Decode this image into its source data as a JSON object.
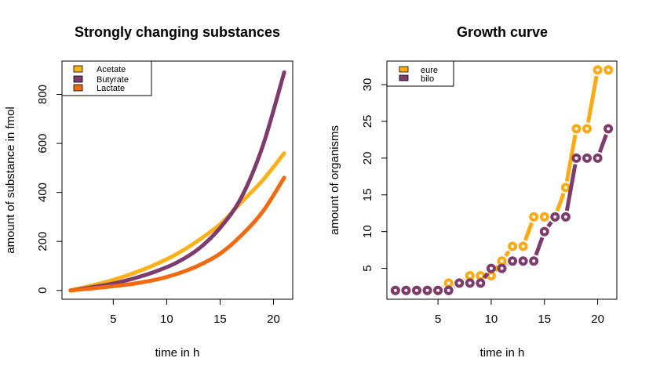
{
  "chart_data": [
    {
      "type": "line",
      "title": "Strongly changing substances",
      "xlabel": "time in h",
      "ylabel": "amount of substance in fmol",
      "xlim": [
        0.2,
        21.8
      ],
      "ylim": [
        -36,
        936
      ],
      "xticks": [
        5,
        10,
        15,
        20
      ],
      "yticks": [
        0,
        200,
        400,
        600,
        800
      ],
      "grid": false,
      "legend_position": "top-left",
      "x": [
        1,
        3,
        5,
        7,
        9,
        11,
        13,
        15,
        17,
        19,
        21
      ],
      "series": [
        {
          "name": "Acetate",
          "color": "#FBB117",
          "values": [
            0,
            20,
            43,
            72,
            107,
            150,
            205,
            270,
            360,
            450,
            560
          ]
        },
        {
          "name": "Butyrate",
          "color": "#7E3B6E",
          "values": [
            0,
            13,
            28,
            50,
            78,
            115,
            170,
            255,
            380,
            590,
            890
          ]
        },
        {
          "name": "Lactate",
          "color": "#F26A10",
          "values": [
            0,
            8,
            17,
            28,
            44,
            68,
            102,
            150,
            225,
            322,
            460
          ]
        }
      ]
    },
    {
      "type": "line",
      "title": "Growth curve",
      "xlabel": "time in h",
      "ylabel": "amount of organisms",
      "xlim": [
        0.2,
        21.8
      ],
      "ylim": [
        0.8,
        33.2
      ],
      "xticks": [
        5,
        10,
        15,
        20
      ],
      "yticks": [
        5,
        10,
        15,
        20,
        25,
        30
      ],
      "grid": false,
      "legend_position": "top-left",
      "x": [
        1,
        2,
        3,
        4,
        5,
        6,
        7,
        8,
        9,
        10,
        11,
        12,
        13,
        14,
        15,
        16,
        17,
        18,
        19,
        20,
        21
      ],
      "series": [
        {
          "name": "eure",
          "color": "#FBAA14",
          "values": [
            2,
            2,
            2,
            2,
            2,
            3,
            3,
            4,
            4,
            4,
            6,
            8,
            8,
            12,
            12,
            12,
            16,
            24,
            24,
            32,
            32
          ]
        },
        {
          "name": "bilo",
          "color": "#7E3B6E",
          "values": [
            2,
            2,
            2,
            2,
            2,
            2,
            3,
            3,
            3,
            5,
            5,
            6,
            6,
            6,
            10,
            12,
            12,
            20,
            20,
            20,
            24
          ]
        }
      ]
    }
  ]
}
